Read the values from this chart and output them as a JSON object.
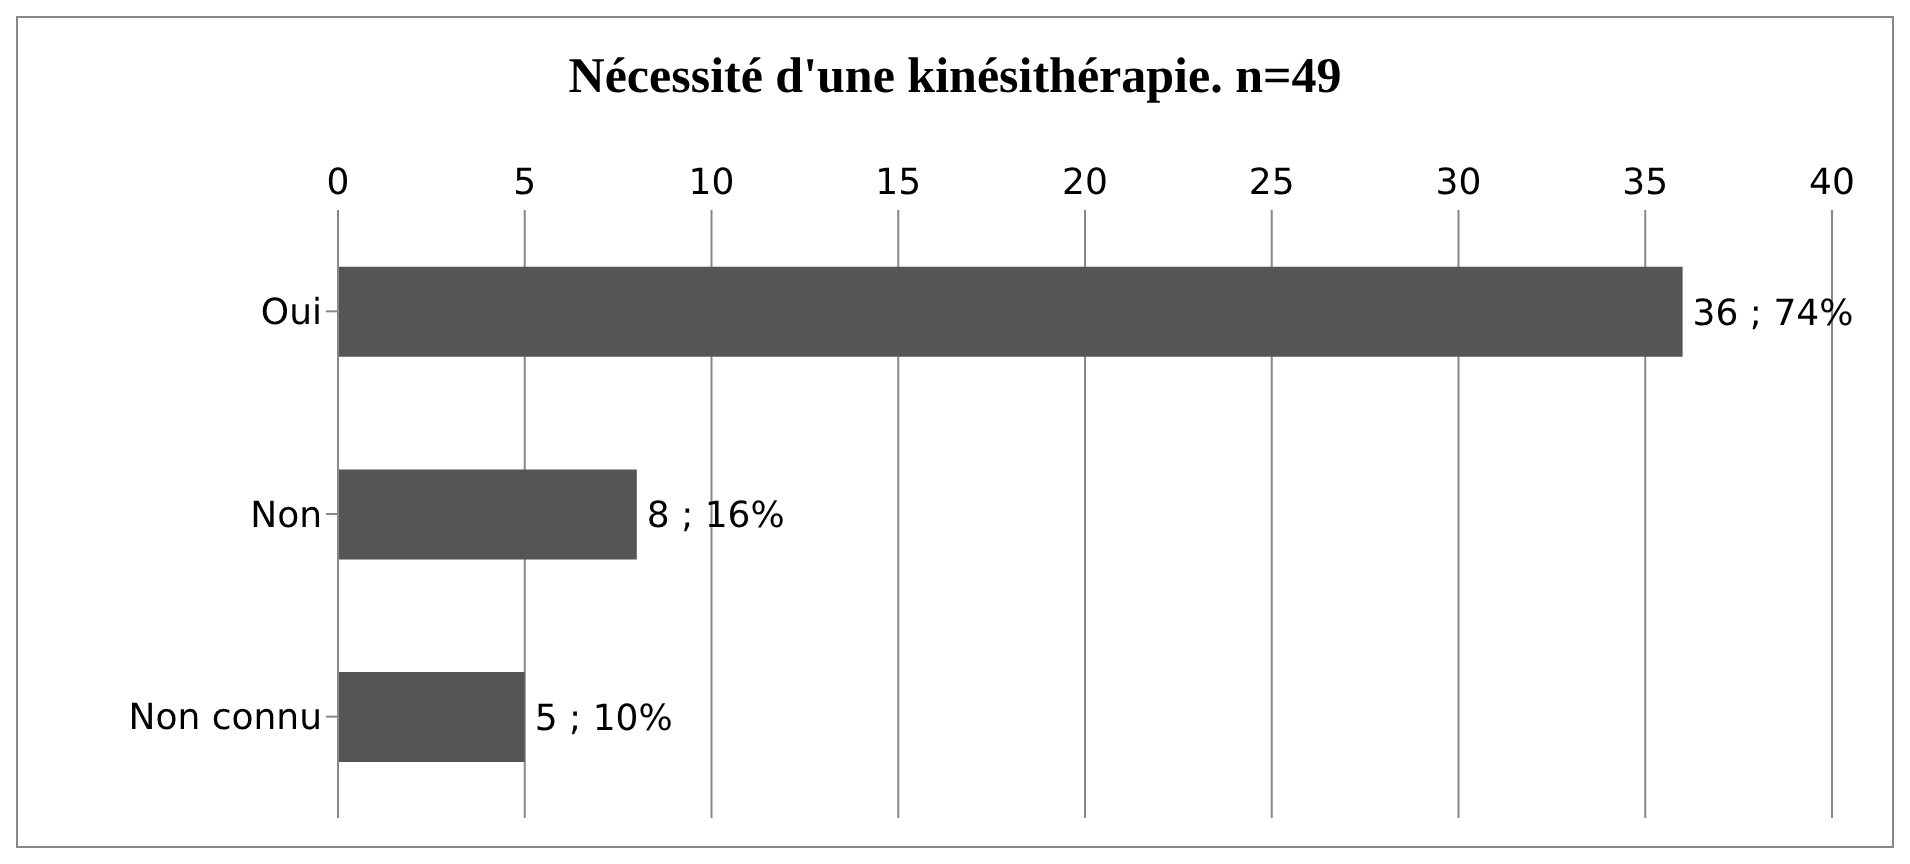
{
  "chart_data": {
    "type": "bar",
    "orientation": "horizontal",
    "title": "Nécessité d'une kinésithérapie. n=49",
    "categories": [
      "Oui",
      "Non",
      "Non connu"
    ],
    "values": [
      36,
      8,
      5
    ],
    "value_labels": [
      "36 ; 74%",
      "8 ; 16%",
      "5 ; 10%"
    ],
    "color": "#555555",
    "xlim": [
      0,
      40
    ],
    "xticks": [
      0,
      5,
      10,
      15,
      20,
      25,
      30,
      35,
      40
    ],
    "grid": "x"
  }
}
